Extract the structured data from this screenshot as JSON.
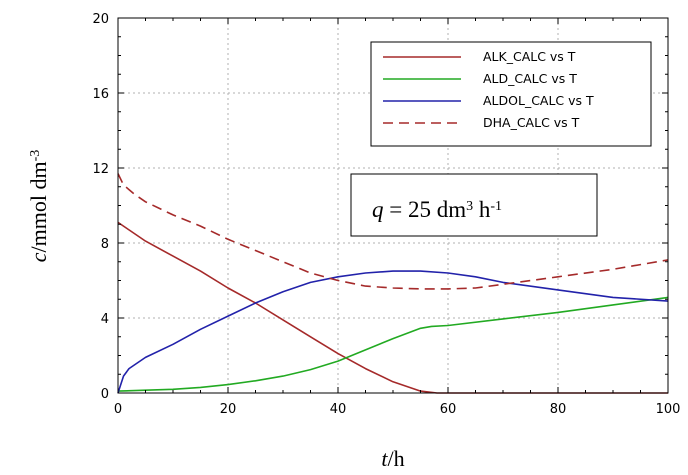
{
  "chart_data": {
    "type": "line",
    "xlabel": {
      "italic": "t",
      "rest": "/h"
    },
    "ylabel": {
      "italic": "c",
      "rest": "/mmol dm",
      "sup": "-3"
    },
    "xlim": [
      0,
      100
    ],
    "ylim": [
      0,
      20
    ],
    "xticks": [
      0,
      20,
      40,
      60,
      80,
      100
    ],
    "yticks": [
      0,
      4,
      8,
      12,
      16,
      20
    ],
    "grid": true,
    "legend_position": "top-right",
    "annotation": {
      "q": "q",
      "eq": " = 25 dm",
      "sup1": "3",
      "h": " h",
      "sup2": "-1"
    },
    "series": [
      {
        "name": "ALK_CALC vs T",
        "color": "#a52a2a",
        "dash": "solid",
        "x": [
          0,
          2,
          5,
          10,
          15,
          20,
          25,
          30,
          35,
          40,
          45,
          50,
          55,
          58,
          60,
          70,
          80,
          90,
          100
        ],
        "y": [
          9.1,
          8.7,
          8.1,
          7.3,
          6.5,
          5.6,
          4.8,
          3.9,
          3.0,
          2.1,
          1.3,
          0.6,
          0.1,
          0.0,
          0.0,
          0.0,
          0.0,
          0.0,
          0.0
        ]
      },
      {
        "name": "ALD_CALC vs T",
        "color": "#22aa22",
        "dash": "solid",
        "x": [
          0,
          5,
          10,
          15,
          20,
          25,
          30,
          35,
          40,
          45,
          50,
          55,
          57,
          60,
          70,
          80,
          90,
          100
        ],
        "y": [
          0.1,
          0.15,
          0.2,
          0.3,
          0.45,
          0.65,
          0.9,
          1.25,
          1.7,
          2.3,
          2.9,
          3.45,
          3.55,
          3.6,
          3.95,
          4.3,
          4.7,
          5.1
        ]
      },
      {
        "name": "ALDOL_CALC vs T",
        "color": "#2222aa",
        "dash": "solid",
        "x": [
          0,
          1,
          2,
          5,
          10,
          15,
          20,
          25,
          30,
          35,
          40,
          45,
          50,
          55,
          60,
          65,
          70,
          80,
          90,
          100
        ],
        "y": [
          0.0,
          0.9,
          1.3,
          1.9,
          2.6,
          3.4,
          4.1,
          4.8,
          5.4,
          5.9,
          6.2,
          6.4,
          6.5,
          6.5,
          6.4,
          6.2,
          5.9,
          5.5,
          5.1,
          4.9
        ]
      },
      {
        "name": "DHA_CALC vs T",
        "color": "#a52a2a",
        "dash": "dashed",
        "x": [
          0,
          1,
          3,
          5,
          10,
          15,
          20,
          25,
          30,
          35,
          40,
          45,
          50,
          55,
          60,
          65,
          70,
          80,
          90,
          100
        ],
        "y": [
          11.7,
          11.1,
          10.6,
          10.2,
          9.5,
          8.9,
          8.2,
          7.6,
          7.0,
          6.4,
          6.0,
          5.7,
          5.6,
          5.55,
          5.55,
          5.6,
          5.8,
          6.2,
          6.6,
          7.1
        ]
      }
    ]
  }
}
